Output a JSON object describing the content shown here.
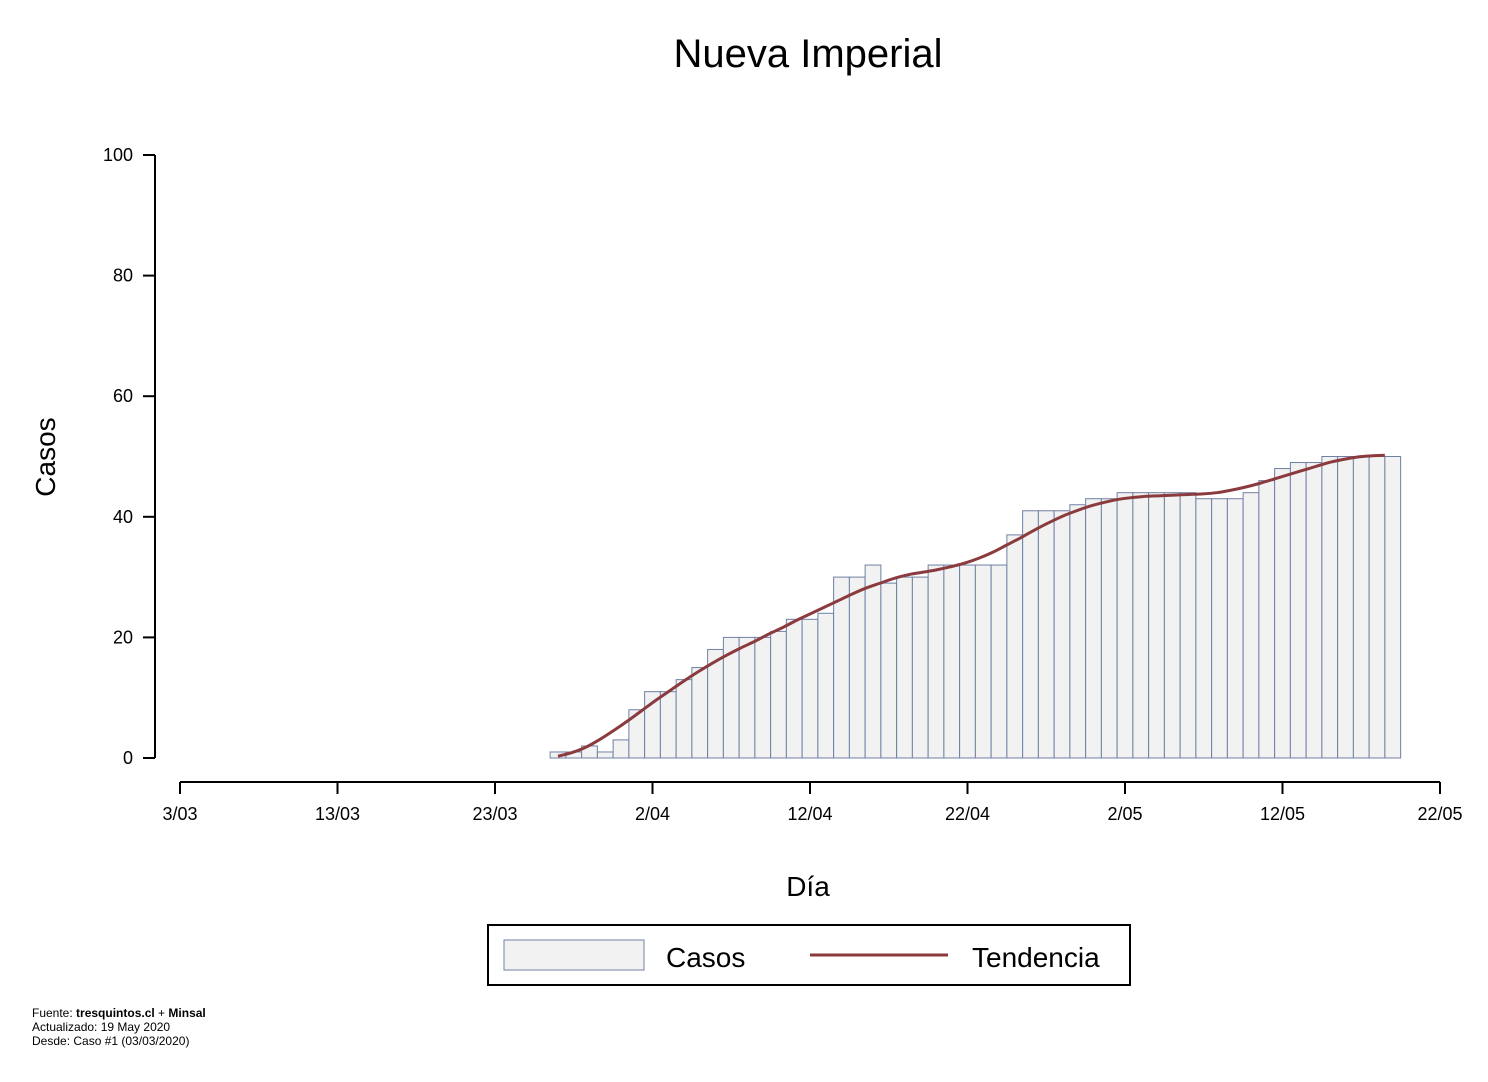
{
  "chart_data": {
    "type": "bar",
    "title": "Nueva Imperial",
    "xlabel": "Día",
    "ylabel": "Casos",
    "ylim": [
      0,
      100
    ],
    "yticks": [
      0,
      20,
      40,
      60,
      80,
      100
    ],
    "xticks": [
      "3/03",
      "13/03",
      "23/03",
      "2/04",
      "12/04",
      "22/04",
      "2/05",
      "12/05",
      "22/05"
    ],
    "x_start": "3/03/2020",
    "first_bar_date": "27/03/2020",
    "series": [
      {
        "name": "Casos",
        "values": [
          1,
          1,
          2,
          1,
          3,
          8,
          11,
          11,
          13,
          15,
          18,
          20,
          20,
          20,
          21,
          23,
          23,
          24,
          30,
          30,
          32,
          29,
          30,
          30,
          32,
          32,
          32,
          32,
          32,
          37,
          41,
          41,
          41,
          42,
          43,
          43,
          44,
          44,
          44,
          44,
          44,
          43,
          43,
          43,
          44,
          46,
          48,
          49,
          49,
          50,
          50,
          50,
          50,
          50
        ]
      },
      {
        "name": "Tendencia",
        "type": "line",
        "values": [
          0.3,
          0.9,
          1.8,
          3.1,
          4.6,
          6.2,
          7.9,
          9.6,
          11.2,
          12.8,
          14.3,
          15.7,
          17.0,
          18.2,
          19.3,
          20.5,
          21.6,
          22.8,
          23.9,
          25.0,
          26.1,
          27.2,
          28.2,
          29.0,
          29.8,
          30.4,
          30.8,
          31.2,
          31.7,
          32.3,
          33.1,
          34.1,
          35.3,
          36.5,
          37.8,
          39.0,
          40.1,
          41.0,
          41.8,
          42.4,
          42.9,
          43.2,
          43.4,
          43.5,
          43.6,
          43.7,
          43.8,
          44.0,
          44.4,
          44.9,
          45.5,
          46.2,
          46.9,
          47.6,
          48.3,
          49.0,
          49.5,
          49.9,
          50.1,
          50.2
        ]
      }
    ],
    "legend_placement": "bottom",
    "colors": {
      "bar_fill": "#f2f2f2",
      "bar_stroke": "#7080a4",
      "trend_line": "#8b3a3e"
    }
  },
  "legend": {
    "casos": "Casos",
    "tendencia": "Tendencia"
  },
  "footer": {
    "fuente_prefix": "Fuente: ",
    "fuente_site": "tresquintos.cl",
    "fuente_join": " + ",
    "fuente_org": "Minsal",
    "actualizado": "Actualizado: 19 May 2020",
    "desde": "Desde: Caso #1  (03/03/2020)"
  }
}
